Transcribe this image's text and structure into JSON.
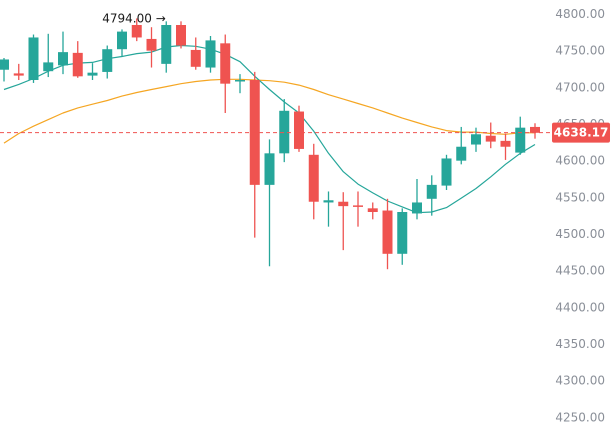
{
  "chart_data": {
    "type": "candlestick",
    "title": "",
    "xlabel": "",
    "ylabel": "",
    "ylim": [
      4230,
      4815
    ],
    "yticks": [
      4800,
      4750,
      4700,
      4650,
      4600,
      4550,
      4500,
      4450,
      4400,
      4350,
      4300,
      4250
    ],
    "ytick_labels": [
      "4800.00",
      "4750.00",
      "4700.00",
      "4650.00",
      "4600.00",
      "4550.00",
      "4500.00",
      "4450.00",
      "4400.00",
      "4350.00",
      "4300.00",
      "4250.00"
    ],
    "grid": false,
    "colors": {
      "up": "#26a69a",
      "down": "#ef5350",
      "ma_fast": "#26a69a",
      "ma_slow": "#f5a623",
      "price_line": "#ef5350",
      "text": "#8a8f98"
    },
    "candles": [
      {
        "o": 4724,
        "h": 4740,
        "l": 4708,
        "c": 4738
      },
      {
        "o": 4719,
        "h": 4732,
        "l": 4710,
        "c": 4716
      },
      {
        "o": 4710,
        "h": 4772,
        "l": 4706,
        "c": 4768
      },
      {
        "o": 4722,
        "h": 4773,
        "l": 4714,
        "c": 4734
      },
      {
        "o": 4730,
        "h": 4776,
        "l": 4718,
        "c": 4748
      },
      {
        "o": 4747,
        "h": 4763,
        "l": 4713,
        "c": 4715
      },
      {
        "o": 4716,
        "h": 4733,
        "l": 4710,
        "c": 4720
      },
      {
        "o": 4721,
        "h": 4757,
        "l": 4712,
        "c": 4752
      },
      {
        "o": 4752,
        "h": 4779,
        "l": 4742,
        "c": 4776
      },
      {
        "o": 4785,
        "h": 4794,
        "l": 4763,
        "c": 4768
      },
      {
        "o": 4766,
        "h": 4782,
        "l": 4727,
        "c": 4750
      },
      {
        "o": 4732,
        "h": 4790,
        "l": 4720,
        "c": 4785
      },
      {
        "o": 4785,
        "h": 4790,
        "l": 4753,
        "c": 4757
      },
      {
        "o": 4751,
        "h": 4768,
        "l": 4724,
        "c": 4728
      },
      {
        "o": 4727,
        "h": 4770,
        "l": 4720,
        "c": 4764
      },
      {
        "o": 4760,
        "h": 4772,
        "l": 4665,
        "c": 4705
      },
      {
        "o": 4708,
        "h": 4718,
        "l": 4692,
        "c": 4710
      },
      {
        "o": 4710,
        "h": 4721,
        "l": 4495,
        "c": 4567
      },
      {
        "o": 4567,
        "h": 4629,
        "l": 4456,
        "c": 4610
      },
      {
        "o": 4610,
        "h": 4684,
        "l": 4598,
        "c": 4668
      },
      {
        "o": 4667,
        "h": 4675,
        "l": 4612,
        "c": 4616
      },
      {
        "o": 4608,
        "h": 4623,
        "l": 4520,
        "c": 4544
      },
      {
        "o": 4543,
        "h": 4558,
        "l": 4510,
        "c": 4546
      },
      {
        "o": 4544,
        "h": 4557,
        "l": 4478,
        "c": 4538
      },
      {
        "o": 4539,
        "h": 4558,
        "l": 4510,
        "c": 4537
      },
      {
        "o": 4535,
        "h": 4543,
        "l": 4520,
        "c": 4530
      },
      {
        "o": 4532,
        "h": 4548,
        "l": 4452,
        "c": 4473
      },
      {
        "o": 4473,
        "h": 4535,
        "l": 4458,
        "c": 4530
      },
      {
        "o": 4528,
        "h": 4575,
        "l": 4520,
        "c": 4543
      },
      {
        "o": 4548,
        "h": 4580,
        "l": 4525,
        "c": 4567
      },
      {
        "o": 4566,
        "h": 4608,
        "l": 4560,
        "c": 4603
      },
      {
        "o": 4600,
        "h": 4646,
        "l": 4595,
        "c": 4619
      },
      {
        "o": 4622,
        "h": 4645,
        "l": 4612,
        "c": 4636
      },
      {
        "o": 4634,
        "h": 4652,
        "l": 4617,
        "c": 4626
      },
      {
        "o": 4627,
        "h": 4637,
        "l": 4601,
        "c": 4619
      },
      {
        "o": 4611,
        "h": 4660,
        "l": 4608,
        "c": 4645
      },
      {
        "o": 4646,
        "h": 4651,
        "l": 4630,
        "c": 4638
      }
    ],
    "ma_fast": [
      4697,
      4704,
      4712,
      4722,
      4730,
      4733,
      4734,
      4739,
      4742,
      4746,
      4748,
      4755,
      4757,
      4756,
      4752,
      4745,
      4735,
      4715,
      4697,
      4680,
      4665,
      4640,
      4610,
      4585,
      4568,
      4556,
      4545,
      4537,
      4529,
      4530,
      4536,
      4549,
      4562,
      4578,
      4595,
      4610,
      4622
    ],
    "ma_slow": [
      4624,
      4637,
      4647,
      4656,
      4665,
      4672,
      4677,
      4682,
      4688,
      4693,
      4697,
      4701,
      4705,
      4708,
      4710,
      4711,
      4711,
      4710,
      4709,
      4707,
      4703,
      4697,
      4690,
      4684,
      4678,
      4672,
      4665,
      4658,
      4652,
      4646,
      4641,
      4639,
      4639,
      4637,
      4636,
      4638,
      4638
    ],
    "current_price": 4638.17,
    "current_price_label": "4638.17",
    "annotation": {
      "candle_index": 9,
      "price": 4794,
      "label": "4794.00 →"
    }
  }
}
